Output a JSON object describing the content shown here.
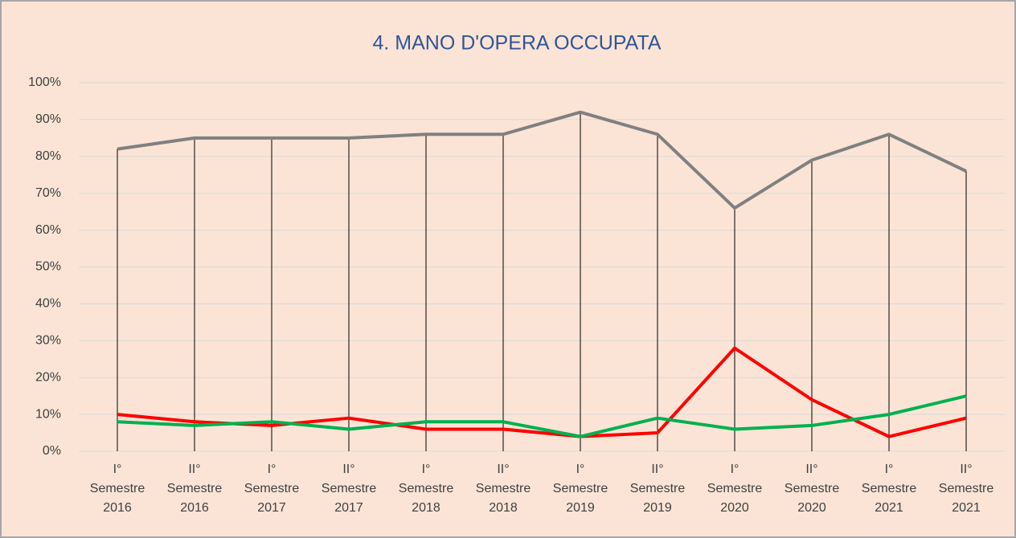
{
  "chart_data": {
    "type": "line",
    "title": "4. MANO D'OPERA OCCUPATA",
    "categories": [
      [
        "I°",
        "Semestre",
        "2016"
      ],
      [
        "II°",
        "Semestre",
        "2016"
      ],
      [
        "I°",
        "Semestre",
        "2017"
      ],
      [
        "II°",
        "Semestre",
        "2017"
      ],
      [
        "I°",
        "Semestre",
        "2018"
      ],
      [
        "II°",
        "Semestre",
        "2018"
      ],
      [
        "I°",
        "Semestre",
        "2019"
      ],
      [
        "II°",
        "Semestre",
        "2019"
      ],
      [
        "I°",
        "Semestre",
        "2020"
      ],
      [
        "II°",
        "Semestre",
        "2020"
      ],
      [
        "I°",
        "Semestre",
        "2021"
      ],
      [
        "II°",
        "Semestre",
        "2021"
      ]
    ],
    "series": [
      {
        "color": "#808080",
        "values": [
          82,
          85,
          85,
          85,
          86,
          86,
          92,
          86,
          66,
          79,
          86,
          76
        ]
      },
      {
        "color": "#ff0000",
        "values": [
          10,
          8,
          7,
          9,
          6,
          6,
          4,
          5,
          28,
          14,
          4,
          9
        ]
      },
      {
        "color": "#00b050",
        "values": [
          8,
          7,
          8,
          6,
          8,
          8,
          4,
          9,
          6,
          7,
          10,
          15
        ]
      }
    ],
    "drop_lines": true,
    "ylim": [
      0,
      100
    ],
    "yticks": [
      {
        "value": 0,
        "label": "0%"
      },
      {
        "value": 10,
        "label": "10%"
      },
      {
        "value": 20,
        "label": "20%"
      },
      {
        "value": 30,
        "label": "30%"
      },
      {
        "value": 40,
        "label": "40%"
      },
      {
        "value": 50,
        "label": "50%"
      },
      {
        "value": 60,
        "label": "60%"
      },
      {
        "value": 70,
        "label": "70%"
      },
      {
        "value": 80,
        "label": "80%"
      },
      {
        "value": 90,
        "label": "90%"
      },
      {
        "value": 100,
        "label": "100%"
      }
    ],
    "grid": true
  }
}
